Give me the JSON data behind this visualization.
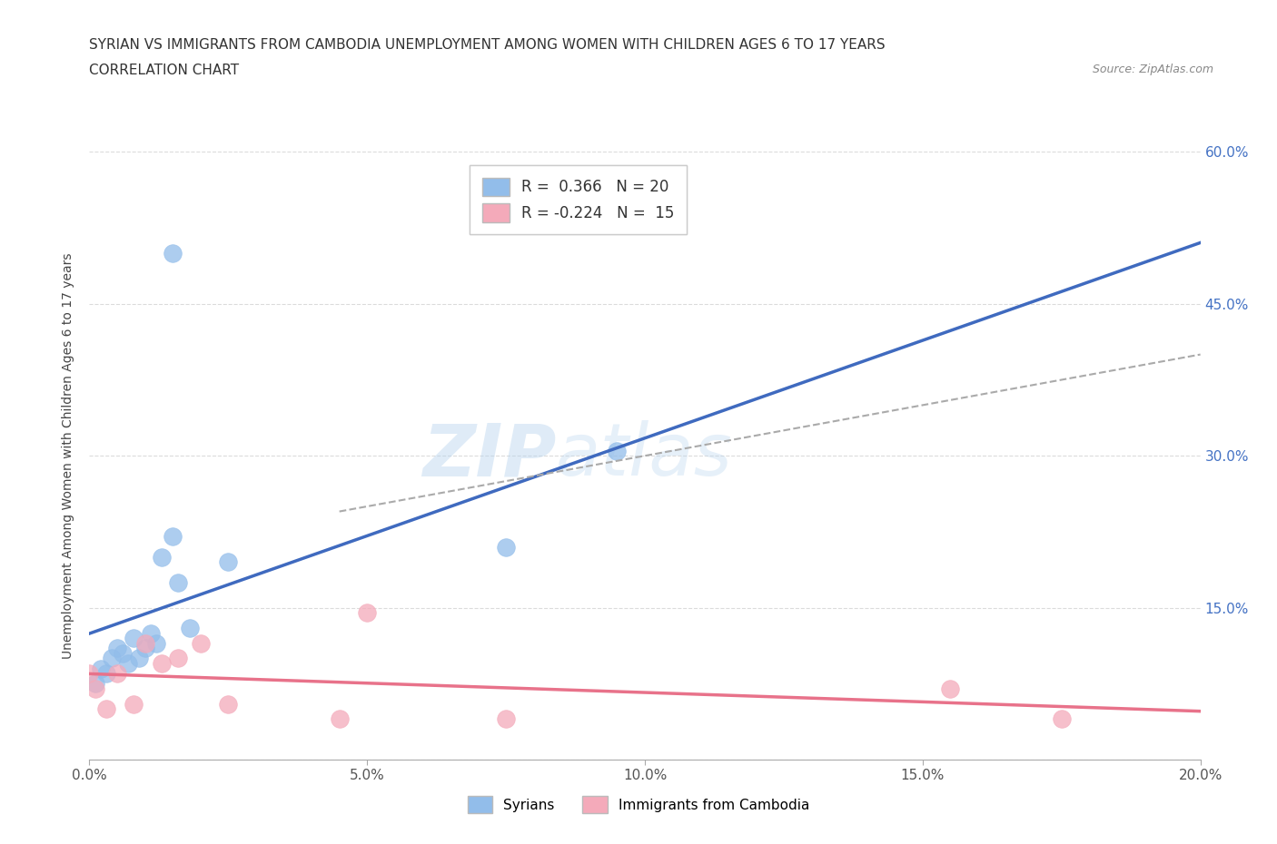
{
  "title_line1": "SYRIAN VS IMMIGRANTS FROM CAMBODIA UNEMPLOYMENT AMONG WOMEN WITH CHILDREN AGES 6 TO 17 YEARS",
  "title_line2": "CORRELATION CHART",
  "source_text": "Source: ZipAtlas.com",
  "ylabel": "Unemployment Among Women with Children Ages 6 to 17 years",
  "xlim": [
    0.0,
    0.2
  ],
  "ylim": [
    0.0,
    0.6
  ],
  "xticks": [
    0.0,
    0.05,
    0.1,
    0.15,
    0.2
  ],
  "yticks": [
    0.0,
    0.15,
    0.3,
    0.45,
    0.6
  ],
  "xtick_labels": [
    "0.0%",
    "5.0%",
    "10.0%",
    "15.0%",
    "20.0%"
  ],
  "ytick_right_labels": [
    "",
    "15.0%",
    "30.0%",
    "45.0%",
    "60.0%"
  ],
  "syrian_color": "#92BDEA",
  "cambodia_color": "#F4AABA",
  "syrian_line_color": "#3F6ABF",
  "cambodia_line_color": "#E8728A",
  "r_syrian": 0.366,
  "n_syrian": 20,
  "r_cambodia": -0.224,
  "n_cambodia": 15,
  "watermark_text": "ZIP",
  "watermark_text2": "atlas",
  "syrians_x": [
    0.001,
    0.002,
    0.003,
    0.004,
    0.005,
    0.006,
    0.007,
    0.008,
    0.009,
    0.01,
    0.011,
    0.012,
    0.013,
    0.015,
    0.016,
    0.018,
    0.025,
    0.015,
    0.075,
    0.095
  ],
  "syrians_y": [
    0.075,
    0.09,
    0.085,
    0.1,
    0.11,
    0.105,
    0.095,
    0.12,
    0.1,
    0.11,
    0.125,
    0.115,
    0.2,
    0.22,
    0.175,
    0.13,
    0.195,
    0.5,
    0.21,
    0.305
  ],
  "cambodia_x": [
    0.0,
    0.001,
    0.003,
    0.005,
    0.008,
    0.01,
    0.013,
    0.016,
    0.02,
    0.025,
    0.045,
    0.05,
    0.075,
    0.155,
    0.175
  ],
  "cambodia_y": [
    0.085,
    0.07,
    0.05,
    0.085,
    0.055,
    0.115,
    0.095,
    0.1,
    0.115,
    0.055,
    0.04,
    0.145,
    0.04,
    0.07,
    0.04
  ]
}
